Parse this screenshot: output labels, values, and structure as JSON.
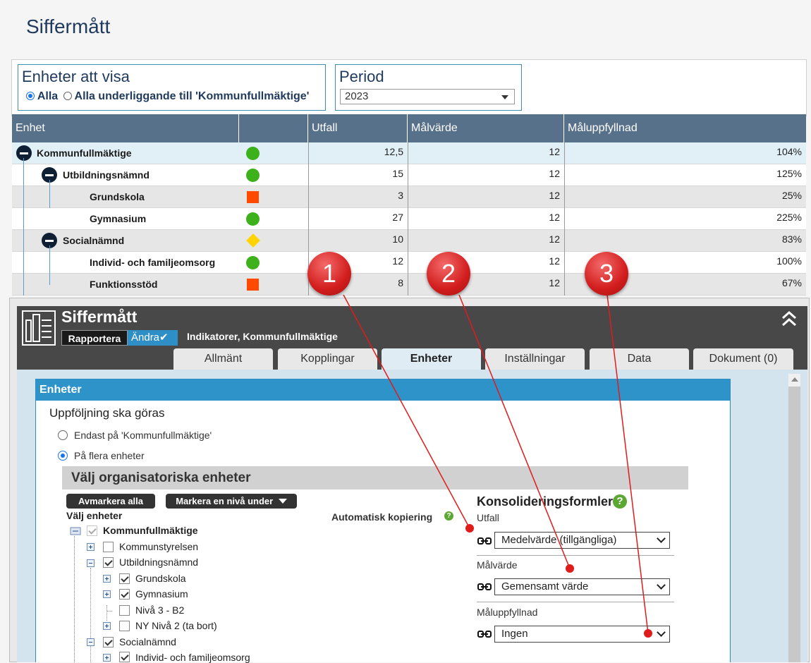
{
  "page_title": "Siffermått",
  "units_filter": {
    "title": "Enheter att visa",
    "option_all": "Alla",
    "option_sub": "Alla underliggande till 'Kommunfullmäktige'"
  },
  "period": {
    "title": "Period",
    "value": "2023"
  },
  "grid": {
    "headers": {
      "unit": "Enhet",
      "status": "",
      "outcome": "Utfall",
      "target": "Målvärde",
      "fulfilment": "Måluppfyllnad"
    },
    "rows": [
      {
        "name": "Kommunfullmäktige",
        "status": "green-circle",
        "outcome": "12,5",
        "target": "12",
        "fulfilment": "104%"
      },
      {
        "name": "Utbildningsnämnd",
        "status": "green-circle",
        "outcome": "15",
        "target": "12",
        "fulfilment": "125%"
      },
      {
        "name": "Grundskola",
        "status": "red-square",
        "outcome": "3",
        "target": "12",
        "fulfilment": "25%"
      },
      {
        "name": "Gymnasium",
        "status": "green-circle",
        "outcome": "27",
        "target": "12",
        "fulfilment": "225%"
      },
      {
        "name": "Socialnämnd",
        "status": "yellow-diamond",
        "outcome": "10",
        "target": "12",
        "fulfilment": "83%"
      },
      {
        "name": "Individ- och familjeomsorg",
        "status": "green-circle",
        "outcome": "12",
        "target": "12",
        "fulfilment": "100%"
      },
      {
        "name": "Funktionsstöd",
        "status": "red-square",
        "outcome": "8",
        "target": "12",
        "fulfilment": "67%"
      }
    ]
  },
  "dialog": {
    "title": "Siffermått",
    "report_button": "Rapportera",
    "edit_button": "Ändra",
    "subtitle": "Indikatorer, Kommunfullmäktige",
    "tabs": [
      "Allmänt",
      "Kopplingar",
      "Enheter",
      "Inställningar",
      "Data",
      "Dokument (0)"
    ],
    "active_tab": "Enheter",
    "section_title": "Enheter",
    "followup_title": "Uppföljning ska göras",
    "followup_option_only": "Endast på 'Kommunfullmäktige'",
    "followup_option_many": "På flera enheter",
    "org_title": "Välj organisatoriska enheter",
    "unmark_all": "Avmarkera alla",
    "mark_level": "Markera en nivå under",
    "choose_units": "Välj enheter",
    "auto_copy": "Automatisk kopiering",
    "tree": [
      {
        "label": "Kommunfullmäktige",
        "checked": true
      },
      {
        "label": "Kommunstyrelsen",
        "checked": false
      },
      {
        "label": "Utbildningsnämnd",
        "checked": true
      },
      {
        "label": "Grundskola",
        "checked": true
      },
      {
        "label": "Gymnasium",
        "checked": true
      },
      {
        "label": "Nivå 3 - B2",
        "checked": false
      },
      {
        "label": "NY Nivå 2 (ta bort)",
        "checked": false
      },
      {
        "label": "Socialnämnd",
        "checked": true
      },
      {
        "label": "Individ- och familjeomsorg",
        "checked": true
      }
    ],
    "consolidation": {
      "title": "Konsolideringsformler",
      "outcome_label": "Utfall",
      "outcome_value": "Medelvärde (tillgängliga)",
      "target_label": "Målvärde",
      "target_value": "Gemensamt värde",
      "fulfilment_label": "Måluppfyllnad",
      "fulfilment_value": "Ingen"
    }
  },
  "callouts": [
    "1",
    "2",
    "3"
  ],
  "colors": {
    "accent": "#2d93c9",
    "header": "#58718b",
    "callout": "#d21d1d",
    "green": "#3cb11b",
    "red": "#ff4a00",
    "yellow": "#ffd400"
  }
}
